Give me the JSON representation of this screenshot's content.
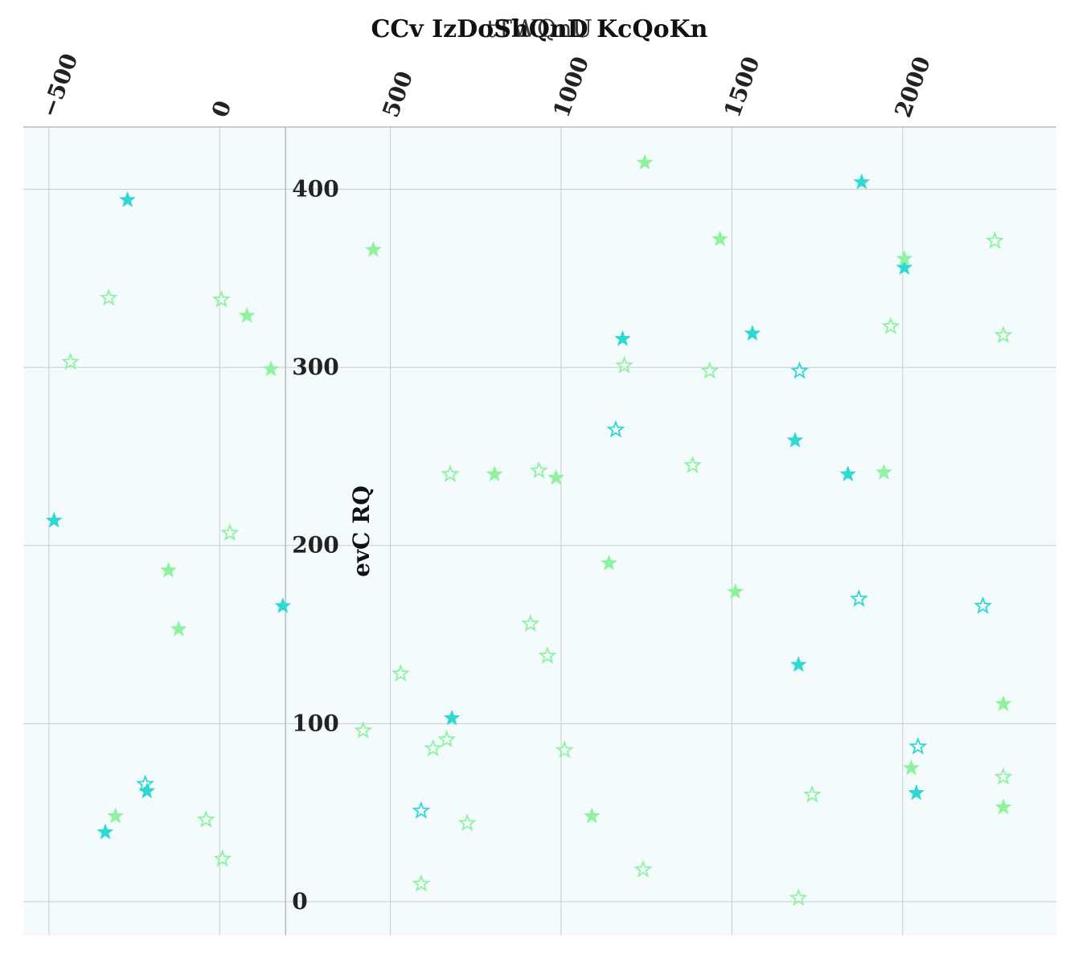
{
  "chart_data": {
    "type": "scatter",
    "title": "CCv IzDoShQnD KcQoKn",
    "xlabel": "tTWQnU",
    "ylabel": "evC RQ",
    "xlim": [
      -575,
      2450
    ],
    "ylim": [
      -19,
      435
    ],
    "xticks": [
      -500,
      0,
      500,
      1000,
      1500,
      2000
    ],
    "yticks": [
      0,
      100,
      200,
      300,
      400
    ],
    "x_axis_position": "top",
    "y_axis_crosses_x_at": 193,
    "grid": true,
    "colors": {
      "background": "#f3fbfd",
      "cyan": "#2fd8d2",
      "green": "#8ef29e",
      "grid": "#c8ccd0"
    },
    "series": [
      {
        "color": "cyan",
        "filled": true,
        "points": [
          [
            -270,
            394
          ],
          [
            -485,
            214
          ],
          [
            -335,
            39
          ],
          [
            -213,
            62
          ],
          [
            185,
            166
          ],
          [
            680,
            103
          ],
          [
            1180,
            316
          ],
          [
            1560,
            319
          ],
          [
            1685,
            259
          ],
          [
            1695,
            133
          ],
          [
            1840,
            240
          ],
          [
            1880,
            404
          ],
          [
            2005,
            356
          ],
          [
            2040,
            61
          ]
        ]
      },
      {
        "color": "cyan",
        "filled": false,
        "points": [
          [
            -218,
            66
          ],
          [
            590,
            51
          ],
          [
            1160,
            265
          ],
          [
            1698,
            298
          ],
          [
            1872,
            170
          ],
          [
            2045,
            87
          ],
          [
            2235,
            166
          ]
        ]
      },
      {
        "color": "green",
        "filled": true,
        "points": [
          [
            -305,
            48
          ],
          [
            -150,
            186
          ],
          [
            -120,
            153
          ],
          [
            80,
            329
          ],
          [
            150,
            299
          ],
          [
            450,
            366
          ],
          [
            805,
            240
          ],
          [
            985,
            238
          ],
          [
            1090,
            48
          ],
          [
            1140,
            190
          ],
          [
            1245,
            415
          ],
          [
            1465,
            372
          ],
          [
            1510,
            174
          ],
          [
            1945,
            241
          ],
          [
            2005,
            361
          ],
          [
            2025,
            75
          ],
          [
            2295,
            111
          ],
          [
            2295,
            53
          ]
        ]
      },
      {
        "color": "green",
        "filled": false,
        "points": [
          [
            -437,
            303
          ],
          [
            -325,
            339
          ],
          [
            -40,
            46
          ],
          [
            5,
            338
          ],
          [
            8,
            24
          ],
          [
            30,
            207
          ],
          [
            420,
            96
          ],
          [
            530,
            128
          ],
          [
            590,
            10
          ],
          [
            625,
            86
          ],
          [
            665,
            91
          ],
          [
            675,
            240
          ],
          [
            725,
            44
          ],
          [
            910,
            156
          ],
          [
            935,
            242
          ],
          [
            960,
            138
          ],
          [
            1010,
            85
          ],
          [
            1185,
            301
          ],
          [
            1240,
            18
          ],
          [
            1385,
            245
          ],
          [
            1435,
            298
          ],
          [
            1695,
            2
          ],
          [
            1735,
            60
          ],
          [
            1965,
            323
          ],
          [
            2270,
            371
          ],
          [
            2295,
            318
          ],
          [
            2295,
            70
          ]
        ]
      }
    ]
  }
}
